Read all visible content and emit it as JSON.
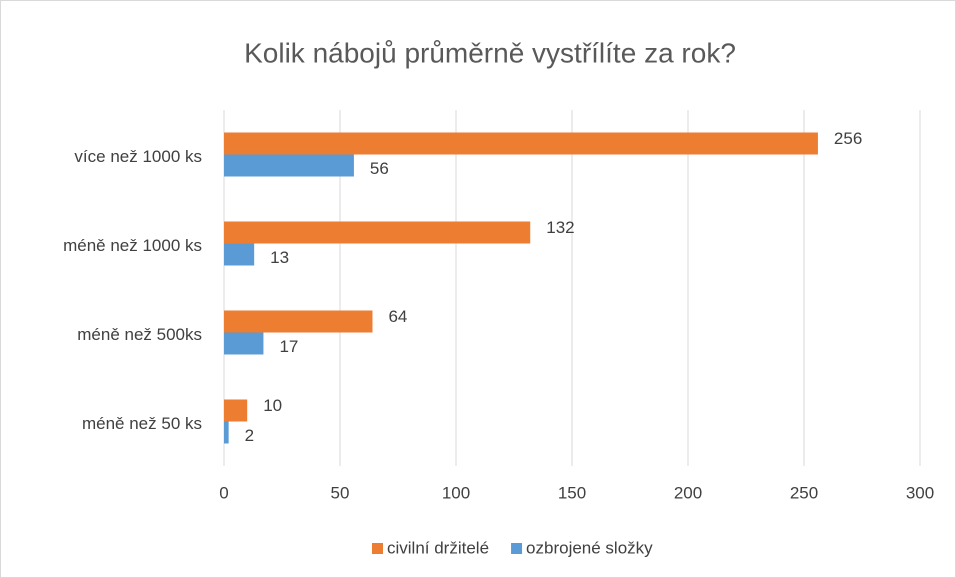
{
  "chart_data": {
    "type": "hbar",
    "title": "Kolik nábojů průměrně vystřílíte za rok?",
    "categories": [
      "více než 1000 ks",
      "méně než 1000 ks",
      "méně než 500ks",
      "méně než 50 ks"
    ],
    "series": [
      {
        "name": "civilní držitelé",
        "color": "#ED7D31",
        "values": [
          256,
          132,
          64,
          10
        ]
      },
      {
        "name": "ozbrojené složky",
        "color": "#5B9BD5",
        "values": [
          56,
          13,
          17,
          2
        ]
      }
    ],
    "xlim": [
      0,
      300
    ],
    "xticks": [
      0,
      50,
      100,
      150,
      200,
      250,
      300
    ],
    "grid": true,
    "legend": "bottom"
  }
}
